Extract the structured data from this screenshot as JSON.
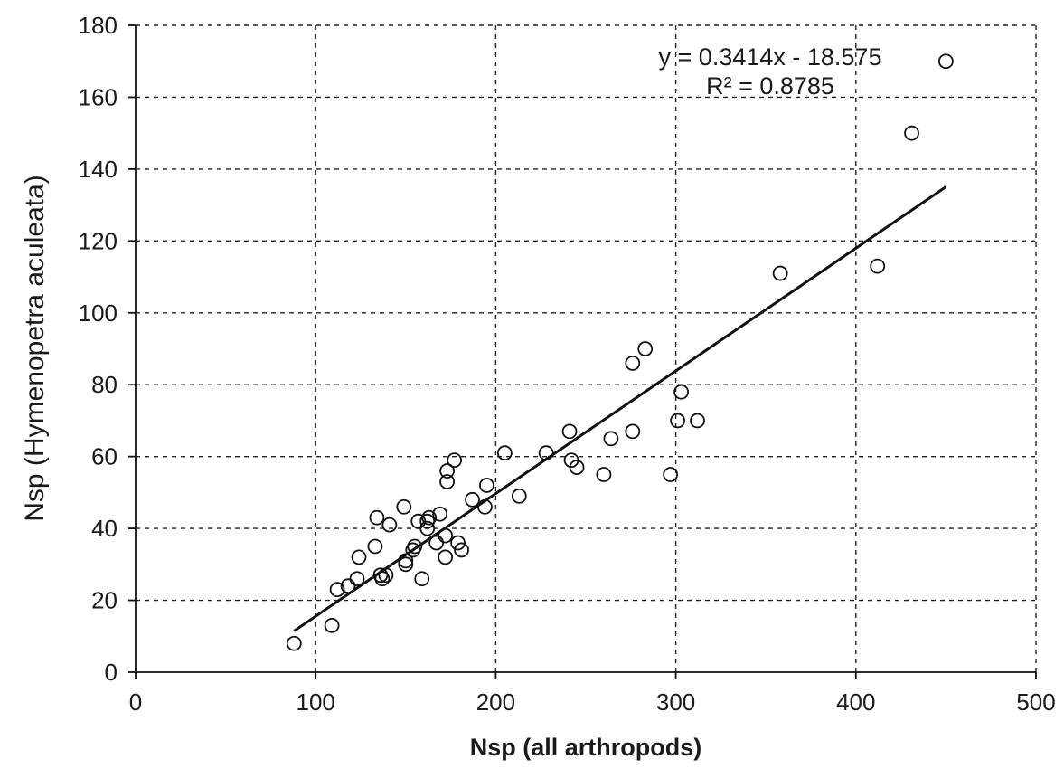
{
  "chart_data": {
    "type": "scatter",
    "title": "",
    "xlabel": "Nsp (all arthropods)",
    "ylabel": "Nsp (Hymenopetra aculeata)",
    "xlim": [
      0,
      500
    ],
    "ylim": [
      0,
      180
    ],
    "x_ticks": [
      0,
      100,
      200,
      300,
      400,
      500
    ],
    "y_ticks": [
      0,
      20,
      40,
      60,
      80,
      100,
      120,
      140,
      160,
      180
    ],
    "grid": true,
    "grid_style": "dashed",
    "marker": "open-circle",
    "points": [
      {
        "x": 88,
        "y": 8
      },
      {
        "x": 109,
        "y": 13
      },
      {
        "x": 112,
        "y": 23
      },
      {
        "x": 118,
        "y": 24
      },
      {
        "x": 123,
        "y": 26
      },
      {
        "x": 124,
        "y": 32
      },
      {
        "x": 133,
        "y": 35
      },
      {
        "x": 134,
        "y": 43
      },
      {
        "x": 136,
        "y": 27
      },
      {
        "x": 137,
        "y": 26
      },
      {
        "x": 139,
        "y": 27
      },
      {
        "x": 141,
        "y": 41
      },
      {
        "x": 149,
        "y": 46
      },
      {
        "x": 150,
        "y": 30
      },
      {
        "x": 150,
        "y": 31
      },
      {
        "x": 154,
        "y": 34
      },
      {
        "x": 155,
        "y": 35
      },
      {
        "x": 157,
        "y": 42
      },
      {
        "x": 159,
        "y": 26
      },
      {
        "x": 162,
        "y": 40
      },
      {
        "x": 162,
        "y": 42
      },
      {
        "x": 163,
        "y": 43
      },
      {
        "x": 167,
        "y": 36
      },
      {
        "x": 169,
        "y": 44
      },
      {
        "x": 172,
        "y": 32
      },
      {
        "x": 172,
        "y": 38
      },
      {
        "x": 173,
        "y": 53
      },
      {
        "x": 173,
        "y": 56
      },
      {
        "x": 177,
        "y": 59
      },
      {
        "x": 179,
        "y": 36
      },
      {
        "x": 181,
        "y": 34
      },
      {
        "x": 187,
        "y": 48
      },
      {
        "x": 194,
        "y": 46
      },
      {
        "x": 195,
        "y": 52
      },
      {
        "x": 205,
        "y": 61
      },
      {
        "x": 213,
        "y": 49
      },
      {
        "x": 228,
        "y": 61
      },
      {
        "x": 241,
        "y": 67
      },
      {
        "x": 242,
        "y": 59
      },
      {
        "x": 245,
        "y": 57
      },
      {
        "x": 260,
        "y": 55
      },
      {
        "x": 264,
        "y": 65
      },
      {
        "x": 276,
        "y": 67
      },
      {
        "x": 276,
        "y": 86
      },
      {
        "x": 283,
        "y": 90
      },
      {
        "x": 297,
        "y": 55
      },
      {
        "x": 301,
        "y": 70
      },
      {
        "x": 303,
        "y": 78
      },
      {
        "x": 312,
        "y": 70
      },
      {
        "x": 358,
        "y": 111
      },
      {
        "x": 412,
        "y": 113
      },
      {
        "x": 431,
        "y": 150
      },
      {
        "x": 450,
        "y": 170
      }
    ],
    "trendline": {
      "slope": 0.3414,
      "intercept": -18.575,
      "x_range": [
        88,
        450
      ]
    },
    "annotation": {
      "equation": "y = 0.3414x - 18.575",
      "r_squared": "R² = 0.8785"
    }
  }
}
